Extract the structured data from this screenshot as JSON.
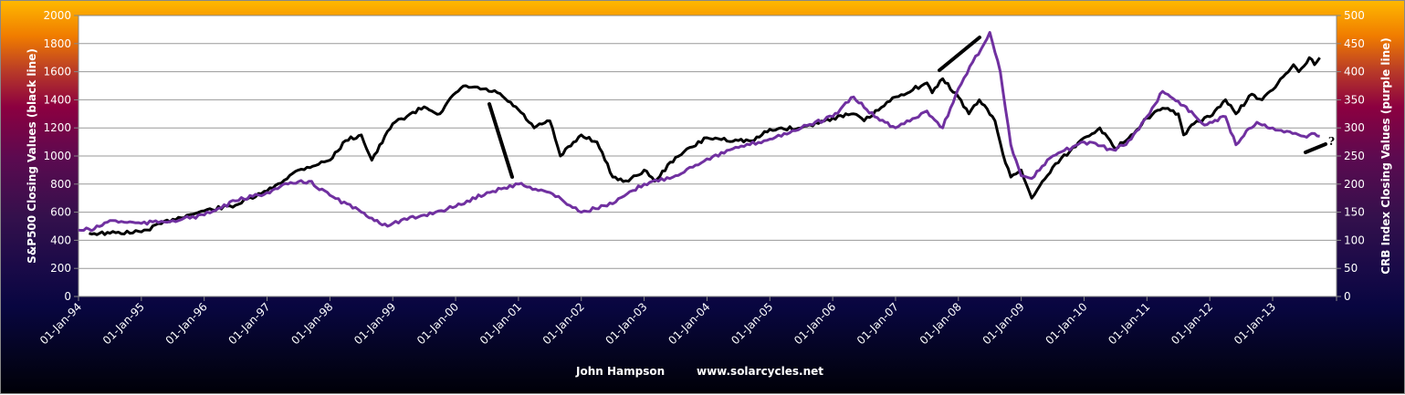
{
  "chart_data": {
    "type": "line",
    "title": "",
    "xlabel": "",
    "ylabel_left": "S&P500 Closing Values (black line)",
    "ylabel_right": "CRB Index Closing Values (purple line)",
    "ylim_left": [
      0,
      2000
    ],
    "ylim_right": [
      0,
      500
    ],
    "yticks_left": [
      "0",
      "200",
      "400",
      "600",
      "800",
      "1000",
      "1200",
      "1400",
      "1600",
      "1800",
      "2000"
    ],
    "yticks_right": [
      "0",
      "50",
      "100",
      "150",
      "200",
      "250",
      "300",
      "350",
      "400",
      "450",
      "500"
    ],
    "xticks": [
      "01-Jan-94",
      "01-Jan-95",
      "01-Jan-96",
      "01-Jan-97",
      "01-Jan-98",
      "01-Jan-99",
      "01-Jan-00",
      "01-Jan-01",
      "01-Jan-02",
      "01-Jan-03",
      "01-Jan-04",
      "01-Jan-05",
      "01-Jan-06",
      "01-Jan-07",
      "01-Jan-08",
      "01-Jan-09",
      "01-Jan-10",
      "01-Jan-11",
      "01-Jan-12",
      "01-Jan-13"
    ],
    "xrange": [
      "1994-01",
      "2014-01"
    ],
    "grid": "horizontal",
    "colors": {
      "sp500": "#000000",
      "crb": "#7030a0",
      "grid": "#999999"
    },
    "series": [
      {
        "axis": "left",
        "color": "#000000",
        "points": [
          [
            "1994-03",
            450
          ],
          [
            "1994-07",
            450
          ],
          [
            "1995-01",
            460
          ],
          [
            "1995-07",
            550
          ],
          [
            "1996-01",
            610
          ],
          [
            "1996-07",
            650
          ],
          [
            "1997-01",
            750
          ],
          [
            "1997-07",
            900
          ],
          [
            "1998-01",
            970
          ],
          [
            "1998-04",
            1110
          ],
          [
            "1998-07",
            1150
          ],
          [
            "1998-09",
            970
          ],
          [
            "1999-01",
            1230
          ],
          [
            "1999-07",
            1350
          ],
          [
            "1999-10",
            1300
          ],
          [
            "2000-01",
            1450
          ],
          [
            "2000-03",
            1500
          ],
          [
            "2000-09",
            1450
          ],
          [
            "2001-01",
            1330
          ],
          [
            "2001-04",
            1200
          ],
          [
            "2001-07",
            1250
          ],
          [
            "2001-09",
            1000
          ],
          [
            "2002-01",
            1150
          ],
          [
            "2002-04",
            1100
          ],
          [
            "2002-07",
            850
          ],
          [
            "2002-10",
            820
          ],
          [
            "2003-01",
            900
          ],
          [
            "2003-03",
            820
          ],
          [
            "2003-07",
            990
          ],
          [
            "2004-01",
            1130
          ],
          [
            "2004-07",
            1110
          ],
          [
            "2004-10",
            1110
          ],
          [
            "2005-01",
            1190
          ],
          [
            "2005-07",
            1200
          ],
          [
            "2006-01",
            1270
          ],
          [
            "2006-05",
            1300
          ],
          [
            "2006-07",
            1250
          ],
          [
            "2007-01",
            1420
          ],
          [
            "2007-07",
            1520
          ],
          [
            "2007-08",
            1450
          ],
          [
            "2007-10",
            1550
          ],
          [
            "2008-01",
            1420
          ],
          [
            "2008-03",
            1300
          ],
          [
            "2008-05",
            1400
          ],
          [
            "2008-08",
            1250
          ],
          [
            "2008-10",
            950
          ],
          [
            "2008-11",
            850
          ],
          [
            "2009-01",
            900
          ],
          [
            "2009-03",
            700
          ],
          [
            "2009-07",
            920
          ],
          [
            "2010-01",
            1130
          ],
          [
            "2010-04",
            1200
          ],
          [
            "2010-07",
            1050
          ],
          [
            "2010-10",
            1150
          ],
          [
            "2011-01",
            1270
          ],
          [
            "2011-04",
            1340
          ],
          [
            "2011-07",
            1300
          ],
          [
            "2011-08",
            1150
          ],
          [
            "2011-10",
            1230
          ],
          [
            "2012-01",
            1280
          ],
          [
            "2012-04",
            1400
          ],
          [
            "2012-06",
            1300
          ],
          [
            "2012-09",
            1440
          ],
          [
            "2012-11",
            1400
          ],
          [
            "2013-01",
            1470
          ],
          [
            "2013-05",
            1650
          ],
          [
            "2013-06",
            1600
          ],
          [
            "2013-08",
            1700
          ],
          [
            "2013-09",
            1650
          ],
          [
            "2013-10",
            1700
          ]
        ]
      },
      {
        "axis": "right",
        "color": "#7030a0",
        "points": [
          [
            "1994-01",
            118
          ],
          [
            "1994-04",
            120
          ],
          [
            "1994-07",
            135
          ],
          [
            "1995-01",
            130
          ],
          [
            "1995-07",
            135
          ],
          [
            "1996-01",
            145
          ],
          [
            "1996-07",
            170
          ],
          [
            "1997-01",
            185
          ],
          [
            "1997-05",
            200
          ],
          [
            "1997-09",
            205
          ],
          [
            "1998-01",
            180
          ],
          [
            "1998-07",
            150
          ],
          [
            "1998-12",
            125
          ],
          [
            "1999-01",
            130
          ],
          [
            "1999-07",
            145
          ],
          [
            "2000-01",
            160
          ],
          [
            "2000-07",
            185
          ],
          [
            "2001-01",
            200
          ],
          [
            "2001-07",
            185
          ],
          [
            "2002-01",
            150
          ],
          [
            "2002-07",
            165
          ],
          [
            "2003-01",
            200
          ],
          [
            "2003-07",
            215
          ],
          [
            "2004-01",
            245
          ],
          [
            "2004-07",
            265
          ],
          [
            "2005-01",
            280
          ],
          [
            "2005-07",
            300
          ],
          [
            "2006-01",
            320
          ],
          [
            "2006-05",
            355
          ],
          [
            "2006-09",
            320
          ],
          [
            "2007-01",
            300
          ],
          [
            "2007-07",
            330
          ],
          [
            "2007-10",
            300
          ],
          [
            "2008-01",
            370
          ],
          [
            "2008-07",
            470
          ],
          [
            "2008-09",
            400
          ],
          [
            "2008-11",
            270
          ],
          [
            "2009-01",
            215
          ],
          [
            "2009-03",
            210
          ],
          [
            "2009-07",
            250
          ],
          [
            "2010-01",
            275
          ],
          [
            "2010-07",
            260
          ],
          [
            "2010-10",
            280
          ],
          [
            "2011-01",
            320
          ],
          [
            "2011-04",
            365
          ],
          [
            "2011-08",
            340
          ],
          [
            "2011-12",
            305
          ],
          [
            "2012-01",
            310
          ],
          [
            "2012-04",
            320
          ],
          [
            "2012-06",
            270
          ],
          [
            "2012-08",
            295
          ],
          [
            "2012-10",
            310
          ],
          [
            "2013-01",
            300
          ],
          [
            "2013-07",
            285
          ],
          [
            "2013-09",
            290
          ],
          [
            "2013-10",
            285
          ]
        ]
      }
    ],
    "annotation_mark": "?"
  },
  "footer": {
    "author": "John Hampson",
    "site": "www.solarcycles.net"
  }
}
